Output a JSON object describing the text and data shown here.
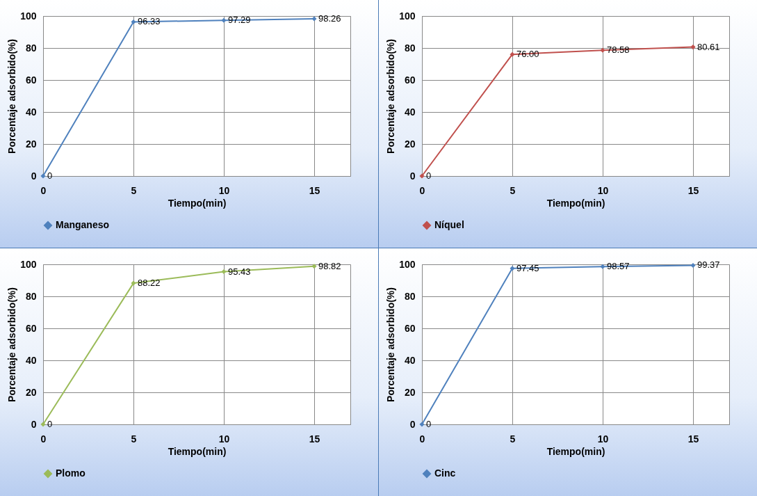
{
  "chart_data": [
    {
      "type": "line",
      "xlabel": "Tiempo(min)",
      "ylabel": "Porcentaje adsorbido(%)",
      "x": [
        0,
        5,
        10,
        15
      ],
      "xlim": [
        0,
        17
      ],
      "xticks": [
        0,
        5,
        10,
        15
      ],
      "ylim": [
        0,
        100
      ],
      "yticks": [
        0,
        20,
        40,
        60,
        80,
        100
      ],
      "grid": true,
      "legend": "bottom",
      "marker": "diamond",
      "line_style": "solid",
      "series": [
        {
          "name": "Manganeso",
          "color": "#4f81bd",
          "values": [
            0,
            96.33,
            97.29,
            98.26
          ],
          "value_labels": [
            "0",
            "96.33",
            "97.29",
            "98.26"
          ]
        }
      ]
    },
    {
      "type": "line",
      "xlabel": "Tiempo(min)",
      "ylabel": "Porcentaje adsorbido(%)",
      "x": [
        0,
        5,
        10,
        15
      ],
      "xlim": [
        0,
        17
      ],
      "xticks": [
        0,
        5,
        10,
        15
      ],
      "ylim": [
        0,
        100
      ],
      "yticks": [
        0,
        20,
        40,
        60,
        80,
        100
      ],
      "grid": true,
      "legend": "bottom",
      "marker": "diamond",
      "line_style": "solid",
      "series": [
        {
          "name": "Níquel",
          "color": "#c0504d",
          "values": [
            0,
            76.0,
            78.58,
            80.61
          ],
          "value_labels": [
            "0",
            "76.00",
            "78.58",
            "80.61"
          ]
        }
      ]
    },
    {
      "type": "line",
      "xlabel": "Tiempo(min)",
      "ylabel": "Porcentaje adsorbido(%)",
      "x": [
        0,
        5,
        10,
        15
      ],
      "xlim": [
        0,
        17
      ],
      "xticks": [
        0,
        5,
        10,
        15
      ],
      "ylim": [
        0,
        100
      ],
      "yticks": [
        0,
        20,
        40,
        60,
        80,
        100
      ],
      "grid": true,
      "legend": "bottom",
      "marker": "diamond",
      "line_style": "solid",
      "series": [
        {
          "name": "Plomo",
          "color": "#9bbb59",
          "values": [
            0,
            88.22,
            95.43,
            98.82
          ],
          "value_labels": [
            "0",
            "88.22",
            "95.43",
            "98.82"
          ]
        }
      ]
    },
    {
      "type": "line",
      "xlabel": "Tiempo(min)",
      "ylabel": "Porcentaje adsorbido(%)",
      "x": [
        0,
        5,
        10,
        15
      ],
      "xlim": [
        0,
        17
      ],
      "xticks": [
        0,
        5,
        10,
        15
      ],
      "ylim": [
        0,
        100
      ],
      "yticks": [
        0,
        20,
        40,
        60,
        80,
        100
      ],
      "grid": true,
      "legend": "bottom",
      "marker": "diamond",
      "line_style": "solid",
      "series": [
        {
          "name": "Cinc",
          "color": "#4f81bd",
          "values": [
            0,
            97.45,
            98.57,
            99.37
          ],
          "value_labels": [
            "0",
            "97.45",
            "98.57",
            "99.37"
          ]
        }
      ]
    }
  ]
}
